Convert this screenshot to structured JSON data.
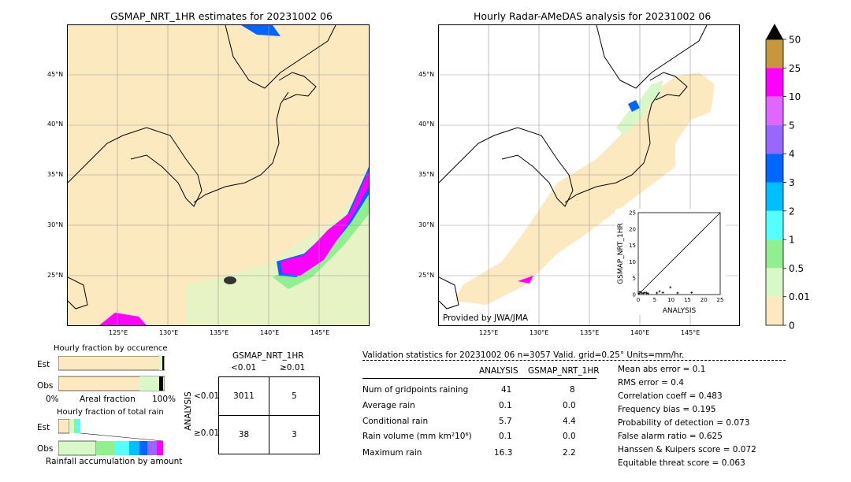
{
  "left_map": {
    "title": "GSMAP_NRT_1HR estimates for 20231002 06",
    "lat_ticks": [
      "45°N",
      "40°N",
      "35°N",
      "30°N",
      "25°N"
    ],
    "lon_ticks": [
      "125°E",
      "130°E",
      "135°E",
      "140°E",
      "145°E"
    ]
  },
  "right_map": {
    "title": "Hourly Radar-AMeDAS analysis for 20231002 06",
    "lat_ticks": [
      "45°N",
      "40°N",
      "35°N",
      "30°N",
      "25°N"
    ],
    "lon_ticks": [
      "125°E",
      "130°E",
      "135°E",
      "140°E",
      "145°E"
    ],
    "provider": "Provided by JWA/JMA"
  },
  "colorbar": {
    "labels": [
      "50",
      "25",
      "10",
      "5",
      "4",
      "3",
      "2",
      "1",
      "0.5",
      "0.01",
      "0"
    ],
    "colors": [
      "#c8963c",
      "#ff00ff",
      "#e066ff",
      "#9966ff",
      "#0066ff",
      "#00bfff",
      "#55ffff",
      "#90f090",
      "#d8f8c8",
      "#fde9c0"
    ]
  },
  "scatter": {
    "xlabel": "ANALYSIS",
    "ylabel": "GSMAP_NRT_1HR",
    "ticks": [
      "0",
      "5",
      "10",
      "15",
      "20",
      "25"
    ]
  },
  "chart_data": {
    "type": "scatter",
    "xlabel": "ANALYSIS",
    "ylabel": "GSMAP_NRT_1HR",
    "xlim": [
      0,
      25
    ],
    "ylim": [
      0,
      25
    ],
    "points": [
      [
        0.2,
        0.3
      ],
      [
        0.5,
        0.8
      ],
      [
        1.0,
        0.5
      ],
      [
        1.5,
        0.4
      ],
      [
        2.0,
        0.6
      ],
      [
        2.5,
        0.5
      ],
      [
        3.0,
        0.3
      ],
      [
        5.7,
        0.5
      ],
      [
        6.5,
        1.0
      ],
      [
        7.5,
        0.6
      ],
      [
        9.8,
        2.2
      ],
      [
        12.0,
        0.5
      ],
      [
        16.3,
        0.6
      ]
    ]
  },
  "fraction_occurrence": {
    "title": "Hourly fraction by occurence",
    "rows": [
      "Est",
      "Obs"
    ],
    "axis_left": "0%",
    "axis_mid": "Areal fraction",
    "axis_right": "100%"
  },
  "fraction_total": {
    "title": "Hourly fraction of total rain",
    "rows": [
      "Est",
      "Obs"
    ],
    "axis_label": "Rainfall accumulation by amount"
  },
  "contingency": {
    "col_title": "GSMAP_NRT_1HR",
    "col_headers": [
      "<0.01",
      "≥0.01"
    ],
    "row_title": "ANALYSIS",
    "row_headers": [
      "<0.01",
      "≥0.01"
    ],
    "cells": [
      [
        "3011",
        "5"
      ],
      [
        "38",
        "3"
      ]
    ]
  },
  "validation": {
    "header": "Validation statistics for 20231002 06  n=3057 Valid. grid=0.25° Units=mm/hr.",
    "col_analysis": "ANALYSIS",
    "col_gsmap": "GSMAP_NRT_1HR",
    "rows": [
      {
        "label": "Num of gridpoints raining",
        "a": "41",
        "g": "8"
      },
      {
        "label": "Average rain",
        "a": "0.1",
        "g": "0.0"
      },
      {
        "label": "Conditional rain",
        "a": "5.7",
        "g": "4.4"
      },
      {
        "label": "Rain volume (mm km²10⁶)",
        "a": "0.1",
        "g": "0.0"
      },
      {
        "label": "Maximum rain",
        "a": "16.3",
        "g": "2.2"
      }
    ],
    "scores": [
      "Mean abs error =    0.1",
      "RMS error =    0.4",
      "Correlation coeff =  0.483",
      "Frequency bias =  0.195",
      "Probability of detection =  0.073",
      "False alarm ratio =  0.625",
      "Hanssen & Kuipers score =  0.072",
      "Equitable threat score =  0.063"
    ]
  }
}
